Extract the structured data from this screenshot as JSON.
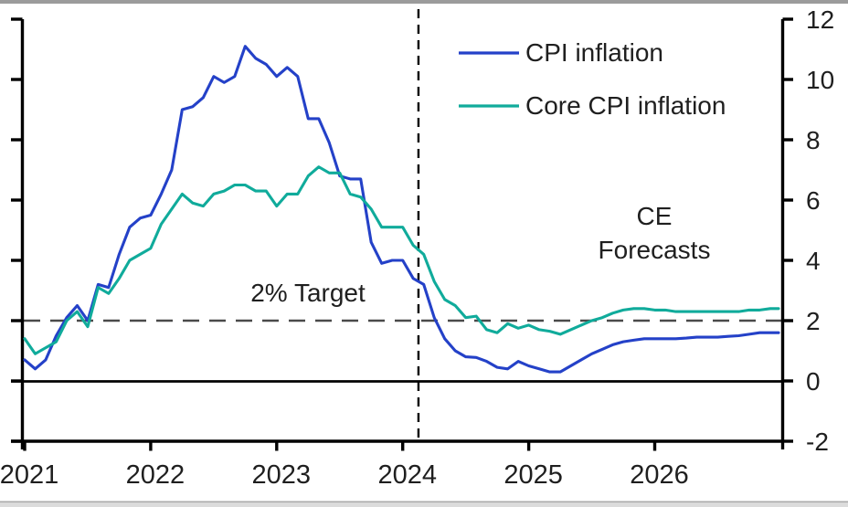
{
  "chart_data": {
    "type": "line",
    "title": "",
    "x_start": "2021-01",
    "x_frequency": "monthly",
    "x_tick_labels": [
      "2021",
      "2022",
      "2023",
      "2024",
      "2025",
      "2026"
    ],
    "y_axis": {
      "side": "right",
      "min": -2,
      "max": 12,
      "tick_step": 2,
      "tick_values": [
        12,
        10,
        8,
        6,
        4,
        2,
        0,
        -2
      ],
      "tick_labels": [
        "12",
        "10",
        "8",
        "6",
        "4",
        "2",
        "0",
        "-2"
      ]
    },
    "grid": false,
    "zero_line": true,
    "legend_position": "inside-top-center",
    "annotations": {
      "target_label": "2% Target",
      "target_value": 2,
      "forecast_label_line1": "CE",
      "forecast_label_line2": "Forecasts",
      "forecast_boundary_index": 37.5
    },
    "series": [
      {
        "name": "CPI inflation",
        "color": "#2441c8",
        "values": [
          0.7,
          0.4,
          0.7,
          1.5,
          2.1,
          2.5,
          2.0,
          3.2,
          3.1,
          4.2,
          5.1,
          5.4,
          5.5,
          6.2,
          7.0,
          9.0,
          9.1,
          9.4,
          10.1,
          9.9,
          10.1,
          11.1,
          10.7,
          10.5,
          10.1,
          10.4,
          10.1,
          8.7,
          8.7,
          7.9,
          6.8,
          6.7,
          6.7,
          4.6,
          3.9,
          4.0,
          4.0,
          3.4,
          3.2,
          2.1,
          1.4,
          1.0,
          0.8,
          0.78,
          0.65,
          0.45,
          0.4,
          0.65,
          0.5,
          0.4,
          0.3,
          0.3,
          0.5,
          0.7,
          0.9,
          1.05,
          1.2,
          1.3,
          1.35,
          1.4,
          1.4,
          1.4,
          1.4,
          1.42,
          1.45,
          1.45,
          1.45,
          1.48,
          1.5,
          1.55,
          1.6,
          1.6
        ]
      },
      {
        "name": "Core CPI inflation",
        "color": "#10ab9b",
        "values": [
          1.4,
          0.9,
          1.1,
          1.3,
          2.0,
          2.3,
          1.8,
          3.1,
          2.9,
          3.4,
          4.0,
          4.2,
          4.4,
          5.2,
          5.7,
          6.2,
          5.9,
          5.8,
          6.2,
          6.3,
          6.5,
          6.5,
          6.3,
          6.3,
          5.8,
          6.2,
          6.2,
          6.8,
          7.1,
          6.9,
          6.9,
          6.2,
          6.1,
          5.7,
          5.1,
          5.1,
          5.1,
          4.5,
          4.2,
          3.3,
          2.7,
          2.5,
          2.1,
          2.15,
          1.7,
          1.6,
          1.9,
          1.75,
          1.85,
          1.7,
          1.65,
          1.55,
          1.7,
          1.85,
          2.0,
          2.1,
          2.25,
          2.35,
          2.4,
          2.4,
          2.35,
          2.35,
          2.3,
          2.3,
          2.3,
          2.3,
          2.3,
          2.3,
          2.3,
          2.35,
          2.35,
          2.4
        ]
      }
    ]
  },
  "colors": {
    "axis": "#000000",
    "text": "#1f1f1f",
    "target_dash": "#4a4a4a",
    "forecast_dash": "#000000",
    "top_strip": "#9b9b9b",
    "bottom_line": "#ababab",
    "bottom_strip": "#dcdcdc",
    "background": "#ffffff"
  }
}
